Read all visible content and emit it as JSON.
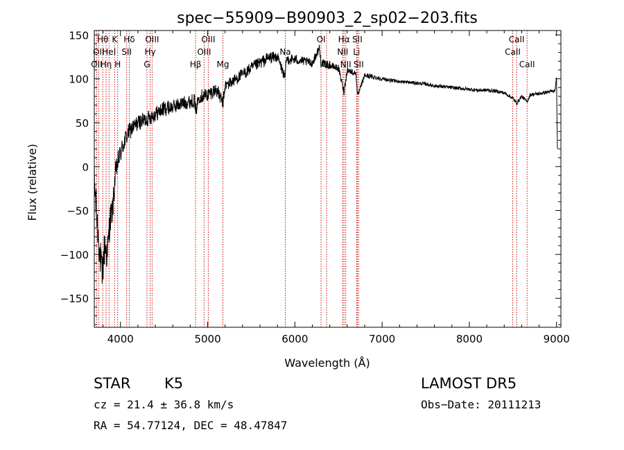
{
  "chart_data": {
    "type": "line",
    "title": "spec−55909−B90903_2_sp02−203.fits",
    "xlabel": "Wavelength (Å)",
    "ylabel": "Flux (relative)",
    "xlim": [
      3700,
      9050
    ],
    "ylim": [
      -183,
      155
    ],
    "x_ticks": [
      4000,
      5000,
      6000,
      7000,
      8000,
      9000
    ],
    "x_tick_labels": [
      "4000",
      "5000",
      "6000",
      "7000",
      "8000",
      "9000"
    ],
    "y_ticks": [
      150,
      100,
      50,
      0,
      -50,
      -100,
      -150
    ],
    "y_tick_labels": [
      "150",
      "100",
      "50",
      "0",
      "−50",
      "−100",
      "−150"
    ],
    "grid": false,
    "series": [
      {
        "color": "#000000",
        "x": [
          3700,
          3730,
          3760,
          3790,
          3820,
          3850,
          3880,
          3910,
          3940,
          3970,
          4000,
          4050,
          4100,
          4150,
          4200,
          4250,
          4300,
          4350,
          4400,
          4450,
          4500,
          4600,
          4700,
          4800,
          4850,
          4861,
          4900,
          5000,
          5100,
          5175,
          5200,
          5300,
          5400,
          5500,
          5600,
          5700,
          5800,
          5890,
          5900,
          6000,
          6100,
          6200,
          6280,
          6300,
          6400,
          6500,
          6563,
          6600,
          6700,
          6720,
          6800,
          6900,
          7000,
          7100,
          7200,
          7300,
          7400,
          7500,
          7600,
          7700,
          7800,
          7900,
          8000,
          8100,
          8200,
          8300,
          8400,
          8498,
          8542,
          8600,
          8662,
          8700,
          8800,
          8900,
          8980,
          9000,
          9010
        ],
        "y": [
          -15,
          -60,
          -95,
          -125,
          -90,
          -100,
          -60,
          -50,
          -10,
          5,
          15,
          30,
          40,
          45,
          50,
          52,
          54,
          57,
          60,
          63,
          66,
          68,
          72,
          74,
          76,
          62,
          80,
          82,
          88,
          72,
          92,
          98,
          105,
          112,
          118,
          124,
          125,
          100,
          122,
          122,
          120,
          118,
          135,
          118,
          115,
          112,
          85,
          110,
          106,
          80,
          104,
          102,
          100,
          98,
          97,
          96,
          95,
          94,
          92,
          91,
          90,
          89,
          88,
          87,
          87,
          86,
          84,
          78,
          72,
          80,
          74,
          82,
          83,
          85,
          86,
          100,
          20
        ],
        "noise": [
          22,
          22,
          22,
          22,
          22,
          20,
          18,
          16,
          14,
          12,
          12,
          11,
          10,
          10,
          9,
          9,
          9,
          9,
          9,
          9,
          9,
          8,
          8,
          8,
          8,
          8,
          8,
          8,
          8,
          8,
          7,
          7,
          7,
          7,
          7,
          7,
          6,
          6,
          6,
          6,
          5,
          5,
          5,
          5,
          4,
          4,
          4,
          4,
          3,
          3,
          3,
          3,
          2,
          2,
          2,
          2,
          2,
          2,
          2,
          2,
          2,
          2,
          2,
          2,
          2,
          2,
          2,
          2,
          2,
          2,
          2,
          2,
          2,
          2,
          2,
          2,
          2
        ]
      }
    ],
    "line_labels": [
      {
        "wave": 3727,
        "text": "OII",
        "row": 3
      },
      {
        "wave": 3750,
        "text": "OII",
        "row": 2
      },
      {
        "wave": 3797,
        "text": "Hθ",
        "row": 1
      },
      {
        "wave": 3835,
        "text": "Hη",
        "row": 3
      },
      {
        "wave": 3869,
        "text": "HeI",
        "row": 2
      },
      {
        "wave": 3933,
        "text": "K",
        "row": 1
      },
      {
        "wave": 3968,
        "text": "H",
        "row": 3
      },
      {
        "wave": 4071,
        "text": "SII",
        "row": 2
      },
      {
        "wave": 4101,
        "text": "Hδ",
        "row": 1
      },
      {
        "wave": 4304,
        "text": "G",
        "row": 3
      },
      {
        "wave": 4340,
        "text": "Hγ",
        "row": 2
      },
      {
        "wave": 4363,
        "text": "OIII",
        "row": 1
      },
      {
        "wave": 4861,
        "text": "Hβ",
        "row": 3
      },
      {
        "wave": 4959,
        "text": "OIII",
        "row": 2
      },
      {
        "wave": 5007,
        "text": "OIII",
        "row": 1
      },
      {
        "wave": 5175,
        "text": "Mg",
        "row": 3
      },
      {
        "wave": 5890,
        "text": "Na",
        "row": 2
      },
      {
        "wave": 6300,
        "text": "OI",
        "row": 1
      },
      {
        "wave": 6363,
        "text": "OI",
        "row": 3
      },
      {
        "wave": 6548,
        "text": "NII",
        "row": 2
      },
      {
        "wave": 6563,
        "text": "Hα",
        "row": 1
      },
      {
        "wave": 6583,
        "text": "NII",
        "row": 3
      },
      {
        "wave": 6707,
        "text": "Li",
        "row": 2
      },
      {
        "wave": 6716,
        "text": "SII",
        "row": 1
      },
      {
        "wave": 6731,
        "text": "SII",
        "row": 3
      },
      {
        "wave": 8498,
        "text": "CaII",
        "row": 2
      },
      {
        "wave": 8542,
        "text": "CaII",
        "row": 1
      },
      {
        "wave": 8662,
        "text": "CaII",
        "row": 3
      }
    ]
  },
  "info": {
    "object_class": "STAR",
    "subclass": "K5",
    "survey": "LAMOST  DR5",
    "cz_line": "cz = 21.4 ± 36.8 km/s",
    "obs_date": "Obs−Date: 20111213",
    "radec": "RA =  54.77124, DEC =  48.47847"
  },
  "colors": {
    "spectrum": "#000000",
    "line_markers": "#cc0000",
    "axes": "#000000"
  }
}
